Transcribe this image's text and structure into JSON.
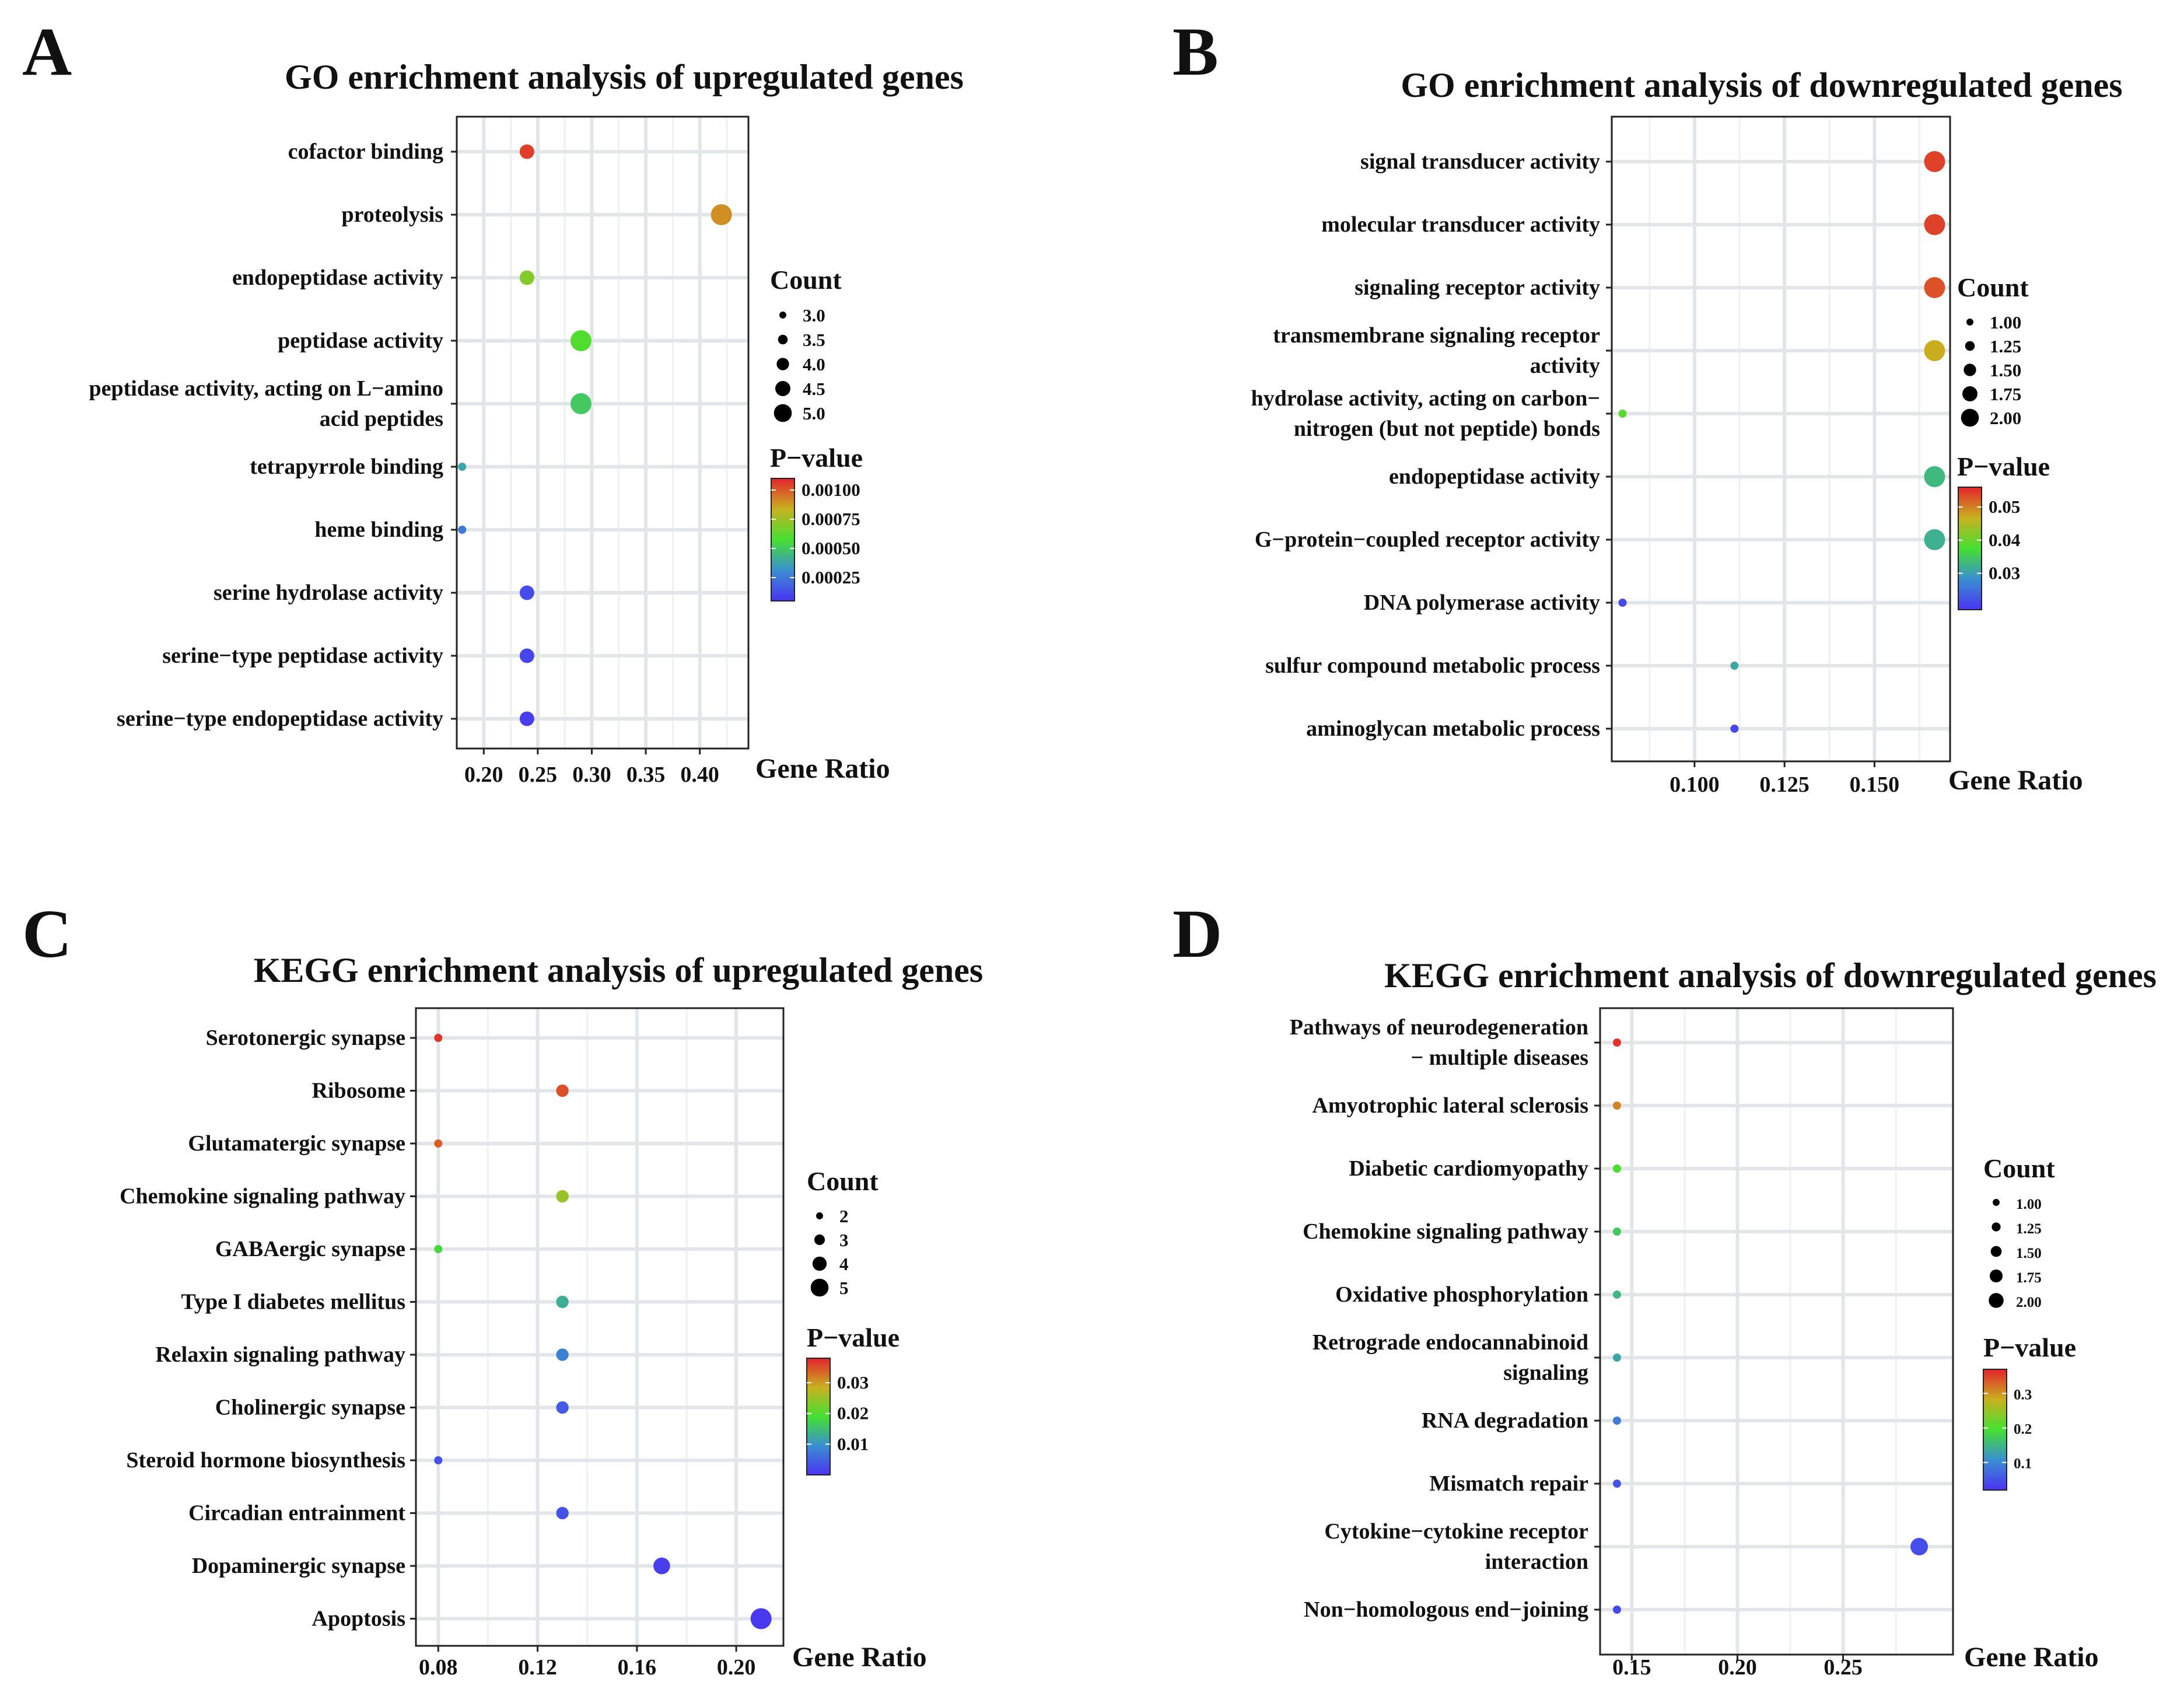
{
  "chart_data": [
    {
      "type": "scatter",
      "panel": "A",
      "title": "GO enrichment analysis of upregulated genes",
      "xlabel": "Gene Ratio",
      "ylabel": "",
      "xlim": [
        0.175,
        0.445
      ],
      "xticks": [
        0.2,
        0.25,
        0.3,
        0.35,
        0.4
      ],
      "xtick_labels": [
        "0.20",
        "0.25",
        "0.30",
        "0.35",
        "0.40"
      ],
      "grid": true,
      "categories": [
        [
          "cofactor binding"
        ],
        [
          "proteolysis"
        ],
        [
          "endopeptidase activity"
        ],
        [
          "peptidase activity"
        ],
        [
          "peptidase activity, acting on L−amino",
          "acid peptides"
        ],
        [
          "tetrapyrrole binding"
        ],
        [
          "heme binding"
        ],
        [
          "serine hydrolase activity"
        ],
        [
          "serine−type peptidase activity"
        ],
        [
          "serine−type endopeptidase activity"
        ]
      ],
      "points": [
        {
          "gene_ratio": 0.24,
          "count": 4,
          "p_value": 0.00105
        },
        {
          "gene_ratio": 0.42,
          "count": 5,
          "p_value": 0.0009
        },
        {
          "gene_ratio": 0.24,
          "count": 4,
          "p_value": 0.0007
        },
        {
          "gene_ratio": 0.29,
          "count": 5,
          "p_value": 0.0006
        },
        {
          "gene_ratio": 0.29,
          "count": 5,
          "p_value": 0.0005
        },
        {
          "gene_ratio": 0.18,
          "count": 3,
          "p_value": 0.00038
        },
        {
          "gene_ratio": 0.18,
          "count": 3,
          "p_value": 0.00025
        },
        {
          "gene_ratio": 0.24,
          "count": 4,
          "p_value": 0.00012
        },
        {
          "gene_ratio": 0.24,
          "count": 4,
          "p_value": 0.0001
        },
        {
          "gene_ratio": 0.24,
          "count": 4,
          "p_value": 8e-05
        }
      ],
      "size_legend": {
        "title": "Count",
        "values": [
          3.0,
          3.5,
          4.0,
          4.5,
          5.0
        ],
        "labels": [
          "3.0",
          "3.5",
          "4.0",
          "4.5",
          "5.0"
        ],
        "range": [
          3,
          5
        ]
      },
      "color_legend": {
        "title": "P−value",
        "range": [
          5e-05,
          0.0011
        ],
        "ticks": [
          0.001,
          0.00075,
          0.0005,
          0.00025
        ],
        "labels": [
          "0.00100",
          "0.00075",
          "0.00050",
          "0.00025"
        ]
      }
    },
    {
      "type": "scatter",
      "panel": "B",
      "title": "GO enrichment analysis of downregulated genes",
      "xlabel": "Gene Ratio",
      "ylabel": "",
      "xlim": [
        0.077,
        0.171
      ],
      "xticks": [
        0.1,
        0.125,
        0.15
      ],
      "xtick_labels": [
        "0.100",
        "0.125",
        "0.150"
      ],
      "grid": true,
      "categories": [
        [
          "signal transducer activity"
        ],
        [
          "molecular transducer activity"
        ],
        [
          "signaling receptor activity"
        ],
        [
          "transmembrane signaling receptor",
          "activity"
        ],
        [
          "hydrolase activity, acting on carbon−",
          "nitrogen (but not peptide) bonds"
        ],
        [
          "endopeptidase activity"
        ],
        [
          "G−protein−coupled receptor activity"
        ],
        [
          "DNA polymerase activity"
        ],
        [
          "sulfur compound metabolic process"
        ],
        [
          "aminoglycan metabolic process"
        ]
      ],
      "points": [
        {
          "gene_ratio": 0.1667,
          "count": 2,
          "p_value": 0.054
        },
        {
          "gene_ratio": 0.1667,
          "count": 2,
          "p_value": 0.054
        },
        {
          "gene_ratio": 0.1667,
          "count": 2,
          "p_value": 0.053
        },
        {
          "gene_ratio": 0.1667,
          "count": 2,
          "p_value": 0.047
        },
        {
          "gene_ratio": 0.08,
          "count": 1,
          "p_value": 0.039
        },
        {
          "gene_ratio": 0.1667,
          "count": 2,
          "p_value": 0.033
        },
        {
          "gene_ratio": 0.1667,
          "count": 2,
          "p_value": 0.032
        },
        {
          "gene_ratio": 0.08,
          "count": 1,
          "p_value": 0.021
        },
        {
          "gene_ratio": 0.1111,
          "count": 1,
          "p_value": 0.031
        },
        {
          "gene_ratio": 0.1111,
          "count": 1,
          "p_value": 0.021
        }
      ],
      "size_legend": {
        "title": "Count",
        "values": [
          1.0,
          1.25,
          1.5,
          1.75,
          2.0
        ],
        "labels": [
          "1.00",
          "1.25",
          "1.50",
          "1.75",
          "2.00"
        ],
        "range": [
          1,
          2
        ]
      },
      "color_legend": {
        "title": "P−value",
        "range": [
          0.019,
          0.056
        ],
        "ticks": [
          0.05,
          0.04,
          0.03
        ],
        "labels": [
          "0.05",
          "0.04",
          "0.03"
        ]
      }
    },
    {
      "type": "scatter",
      "panel": "C",
      "title": "KEGG enrichment analysis of upregulated genes",
      "xlabel": "Gene Ratio",
      "ylabel": "",
      "xlim": [
        0.071,
        0.219
      ],
      "xticks": [
        0.08,
        0.12,
        0.16,
        0.2
      ],
      "xtick_labels": [
        "0.08",
        "0.12",
        "0.16",
        "0.20"
      ],
      "grid": true,
      "categories": [
        [
          "Serotonergic synapse"
        ],
        [
          "Ribosome"
        ],
        [
          "Glutamatergic synapse"
        ],
        [
          "Chemokine signaling pathway"
        ],
        [
          "GABAergic synapse"
        ],
        [
          "Type I diabetes mellitus"
        ],
        [
          "Relaxin signaling pathway"
        ],
        [
          "Cholinergic synapse"
        ],
        [
          "Steroid hormone biosynthesis"
        ],
        [
          "Circadian entrainment"
        ],
        [
          "Dopaminergic synapse"
        ],
        [
          "Apoptosis"
        ]
      ],
      "points": [
        {
          "gene_ratio": 0.08,
          "count": 2,
          "p_value": 0.037
        },
        {
          "gene_ratio": 0.13,
          "count": 3,
          "p_value": 0.035
        },
        {
          "gene_ratio": 0.08,
          "count": 2,
          "p_value": 0.034
        },
        {
          "gene_ratio": 0.13,
          "count": 3,
          "p_value": 0.025
        },
        {
          "gene_ratio": 0.08,
          "count": 2,
          "p_value": 0.018
        },
        {
          "gene_ratio": 0.13,
          "count": 3,
          "p_value": 0.013
        },
        {
          "gene_ratio": 0.13,
          "count": 3,
          "p_value": 0.008
        },
        {
          "gene_ratio": 0.13,
          "count": 3,
          "p_value": 0.004
        },
        {
          "gene_ratio": 0.08,
          "count": 2,
          "p_value": 0.003
        },
        {
          "gene_ratio": 0.13,
          "count": 3,
          "p_value": 0.003
        },
        {
          "gene_ratio": 0.17,
          "count": 4,
          "p_value": 0.001
        },
        {
          "gene_ratio": 0.21,
          "count": 5,
          "p_value": 0.0005
        }
      ],
      "size_legend": {
        "title": "Count",
        "values": [
          2,
          3,
          4,
          5
        ],
        "labels": [
          "2",
          "3",
          "4",
          "5"
        ],
        "range": [
          2,
          5
        ]
      },
      "color_legend": {
        "title": "P−value",
        "range": [
          0.0,
          0.038
        ],
        "ticks": [
          0.03,
          0.02,
          0.01
        ],
        "labels": [
          "0.03",
          "0.02",
          "0.01"
        ]
      }
    },
    {
      "type": "scatter",
      "panel": "D",
      "title": "KEGG enrichment analysis of downregulated genes",
      "xlabel": "Gene Ratio",
      "ylabel": "",
      "xlim": [
        0.135,
        0.302
      ],
      "xticks": [
        0.15,
        0.2,
        0.25
      ],
      "xtick_labels": [
        "0.15",
        "0.20",
        "0.25"
      ],
      "grid": true,
      "categories": [
        [
          "Pathways of neurodegeneration",
          "− multiple diseases"
        ],
        [
          "Amyotrophic lateral sclerosis"
        ],
        [
          "Diabetic cardiomyopathy"
        ],
        [
          "Chemokine signaling pathway"
        ],
        [
          "Oxidative phosphorylation"
        ],
        [
          "Retrograde endocannabinoid",
          "signaling"
        ],
        [
          "RNA degradation"
        ],
        [
          "Mismatch repair"
        ],
        [
          "Cytokine−cytokine receptor",
          "interaction"
        ],
        [
          "Non−homologous end−joining"
        ]
      ],
      "points": [
        {
          "gene_ratio": 0.143,
          "count": 1,
          "p_value": 0.36
        },
        {
          "gene_ratio": 0.143,
          "count": 1,
          "p_value": 0.31
        },
        {
          "gene_ratio": 0.143,
          "count": 1,
          "p_value": 0.2
        },
        {
          "gene_ratio": 0.143,
          "count": 1,
          "p_value": 0.17
        },
        {
          "gene_ratio": 0.143,
          "count": 1,
          "p_value": 0.15
        },
        {
          "gene_ratio": 0.143,
          "count": 1,
          "p_value": 0.13
        },
        {
          "gene_ratio": 0.143,
          "count": 1,
          "p_value": 0.09
        },
        {
          "gene_ratio": 0.143,
          "count": 1,
          "p_value": 0.05
        },
        {
          "gene_ratio": 0.286,
          "count": 2,
          "p_value": 0.045
        },
        {
          "gene_ratio": 0.143,
          "count": 1,
          "p_value": 0.04
        }
      ],
      "size_legend": {
        "title": "Count",
        "values": [
          1.0,
          1.25,
          1.5,
          1.75,
          2.0
        ],
        "labels": [
          "1.00",
          "1.25",
          "1.50",
          "1.75",
          "2.00"
        ],
        "range": [
          1,
          2
        ]
      },
      "color_legend": {
        "title": "P−value",
        "range": [
          0.02,
          0.37
        ],
        "ticks": [
          0.3,
          0.2,
          0.1
        ],
        "labels": [
          "0.3",
          "0.2",
          "0.1"
        ]
      }
    }
  ]
}
